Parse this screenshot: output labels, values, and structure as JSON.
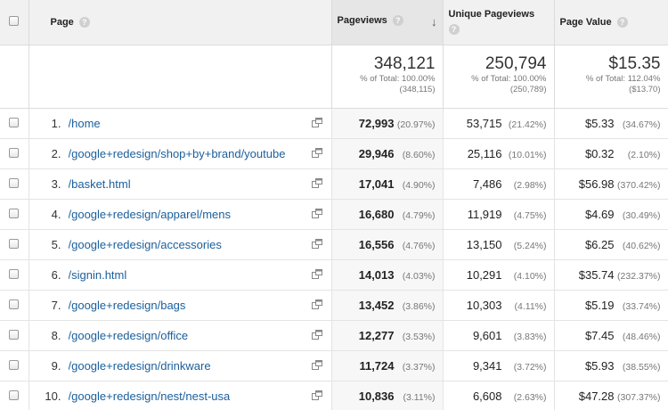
{
  "headers": {
    "page": "Page",
    "pageviews": "Pageviews",
    "unique_pageviews": "Unique Pageviews",
    "page_value": "Page Value"
  },
  "totals": {
    "pageviews": {
      "value": "348,121",
      "pct_label": "% of Total: 100.00%",
      "base": "(348,115)"
    },
    "unique_pageviews": {
      "value": "250,794",
      "pct_label": "% of Total: 100.00%",
      "base": "(250,789)"
    },
    "page_value": {
      "value": "$15.35",
      "pct_label": "% of Total: 112.04%",
      "base": "($13.70)"
    }
  },
  "rows": [
    {
      "num": "1.",
      "page": "/home",
      "pv": "72,993",
      "pv_pct": "(20.97%)",
      "upv": "53,715",
      "upv_pct": "(21.42%)",
      "val": "$5.33",
      "val_pct": "(34.67%)"
    },
    {
      "num": "2.",
      "page": "/google+redesign/shop+by+brand/youtube",
      "pv": "29,946",
      "pv_pct": "(8.60%)",
      "upv": "25,116",
      "upv_pct": "(10.01%)",
      "val": "$0.32",
      "val_pct": "(2.10%)"
    },
    {
      "num": "3.",
      "page": "/basket.html",
      "pv": "17,041",
      "pv_pct": "(4.90%)",
      "upv": "7,486",
      "upv_pct": "(2.98%)",
      "val": "$56.98",
      "val_pct": "(370.42%)"
    },
    {
      "num": "4.",
      "page": "/google+redesign/apparel/mens",
      "pv": "16,680",
      "pv_pct": "(4.79%)",
      "upv": "11,919",
      "upv_pct": "(4.75%)",
      "val": "$4.69",
      "val_pct": "(30.49%)"
    },
    {
      "num": "5.",
      "page": "/google+redesign/accessories",
      "pv": "16,556",
      "pv_pct": "(4.76%)",
      "upv": "13,150",
      "upv_pct": "(5.24%)",
      "val": "$6.25",
      "val_pct": "(40.62%)"
    },
    {
      "num": "6.",
      "page": "/signin.html",
      "pv": "14,013",
      "pv_pct": "(4.03%)",
      "upv": "10,291",
      "upv_pct": "(4.10%)",
      "val": "$35.74",
      "val_pct": "(232.37%)"
    },
    {
      "num": "7.",
      "page": "/google+redesign/bags",
      "pv": "13,452",
      "pv_pct": "(3.86%)",
      "upv": "10,303",
      "upv_pct": "(4.11%)",
      "val": "$5.19",
      "val_pct": "(33.74%)"
    },
    {
      "num": "8.",
      "page": "/google+redesign/office",
      "pv": "12,277",
      "pv_pct": "(3.53%)",
      "upv": "9,601",
      "upv_pct": "(3.83%)",
      "val": "$7.45",
      "val_pct": "(48.46%)"
    },
    {
      "num": "9.",
      "page": "/google+redesign/drinkware",
      "pv": "11,724",
      "pv_pct": "(3.37%)",
      "upv": "9,341",
      "upv_pct": "(3.72%)",
      "val": "$5.93",
      "val_pct": "(38.55%)"
    },
    {
      "num": "10.",
      "page": "/google+redesign/nest/nest-usa",
      "pv": "10,836",
      "pv_pct": "(3.11%)",
      "upv": "6,608",
      "upv_pct": "(2.63%)",
      "val": "$47.28",
      "val_pct": "(307.37%)"
    }
  ],
  "icons": {
    "help": "question-mark-icon",
    "sort": "sort-descending-arrow-icon",
    "external": "open-in-new-window-icon"
  },
  "colors": {
    "link": "#1a5f9c",
    "header_bg": "#f1f1f1",
    "sorted_col_bg": "#f7f7f7"
  }
}
